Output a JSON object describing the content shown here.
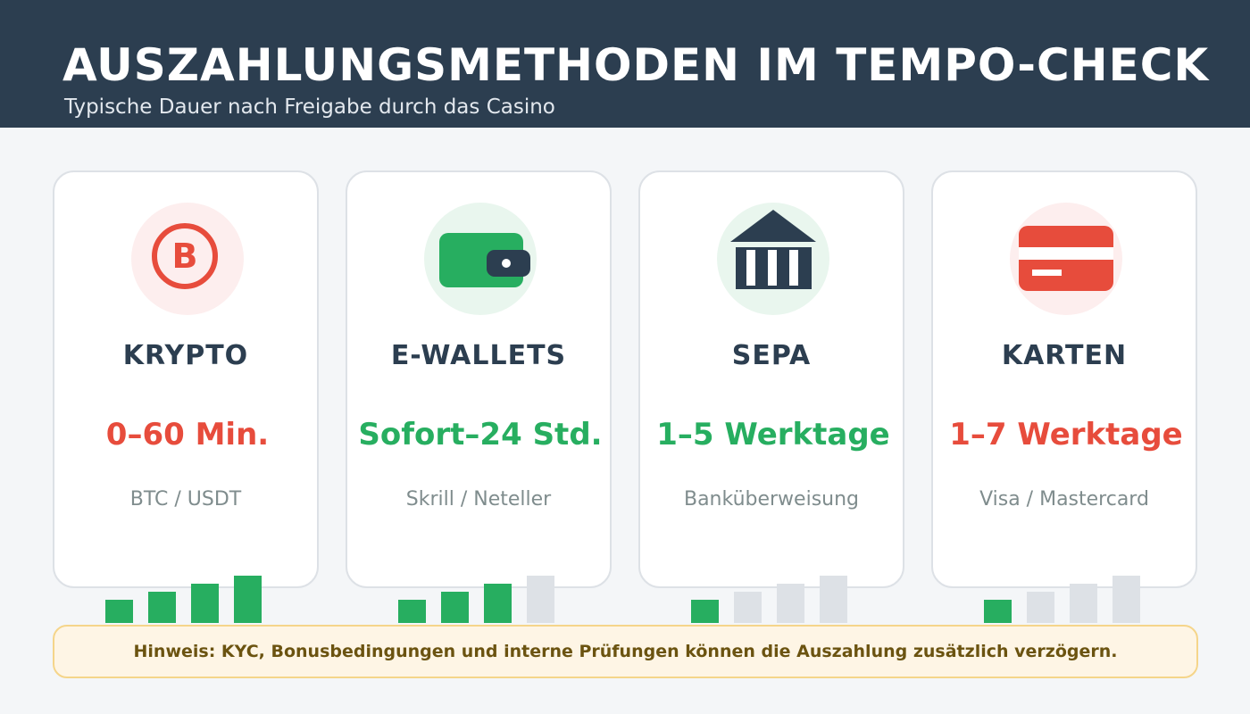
{
  "header": {
    "title": "AUSZAHLUNGSMETHODEN IM TEMPO-CHECK",
    "subtitle": "Typische Dauer nach Freigabe durch das Casino"
  },
  "colors": {
    "header_bg": "#2c3e50",
    "fast": "#27ae60",
    "slow": "#e74c3c",
    "bar_inactive": "#dde1e6",
    "note_bg": "#fef5e5",
    "note_text": "#6b5310"
  },
  "cards": [
    {
      "title": "KRYPTO",
      "time": "0–60 Min.",
      "method": "BTC / USDT",
      "icon": "bitcoin-icon",
      "icon_letter": "B",
      "time_color": "#e74c3c",
      "icon_bg": "#fdeeee",
      "speed_level": 4,
      "speed_max": 4
    },
    {
      "title": "E-WALLETS",
      "time": "Sofort–24 Std.",
      "method": "Skrill / Neteller",
      "icon": "wallet-icon",
      "time_color": "#27ae60",
      "icon_bg": "#e9f6ee",
      "speed_level": 3,
      "speed_max": 4
    },
    {
      "title": "SEPA",
      "time": "1–5 Werktage",
      "method": "Banküberweisung",
      "icon": "bank-icon",
      "time_color": "#27ae60",
      "icon_bg": "#e9f6ee",
      "speed_level": 1,
      "speed_max": 4
    },
    {
      "title": "KARTEN",
      "time": "1–7 Werktage",
      "method": "Visa / Mastercard",
      "icon": "credit-card-icon",
      "time_color": "#e74c3c",
      "icon_bg": "#fdeeee",
      "speed_level": 1,
      "speed_max": 4
    }
  ],
  "note": {
    "text": "Hinweis: KYC, Bonusbedingungen und interne Prüfungen können die Auszahlung zusätzlich verzögern."
  }
}
